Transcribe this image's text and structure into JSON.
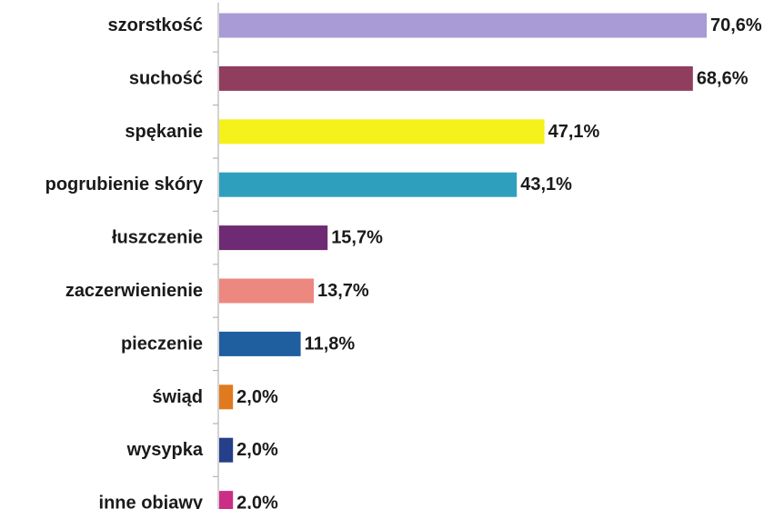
{
  "chart_data": {
    "type": "bar",
    "orientation": "horizontal",
    "categories": [
      "szorstkość",
      "suchość",
      "spękanie",
      "pogrubienie skóry",
      "łuszczenie",
      "zaczerwienienie",
      "pieczenie",
      "świąd",
      "wysypka",
      "inne objawy"
    ],
    "values": [
      70.6,
      68.6,
      47.1,
      43.1,
      15.7,
      13.7,
      11.8,
      2.0,
      2.0,
      2.0
    ],
    "value_labels": [
      "70,6%",
      "68,6%",
      "47,1%",
      "43,1%",
      "15,7%",
      "13,7%",
      "11,8%",
      "2,0%",
      "2,0%",
      "2,0%"
    ],
    "colors": [
      "#a99bd5",
      "#913d5d",
      "#f5f11a",
      "#2ea0bd",
      "#6e2a73",
      "#ec8880",
      "#1f5f9f",
      "#e07a1e",
      "#253f8a",
      "#cc2e86"
    ],
    "xlim": [
      0,
      70.6
    ],
    "grid": false,
    "legend": "none"
  }
}
